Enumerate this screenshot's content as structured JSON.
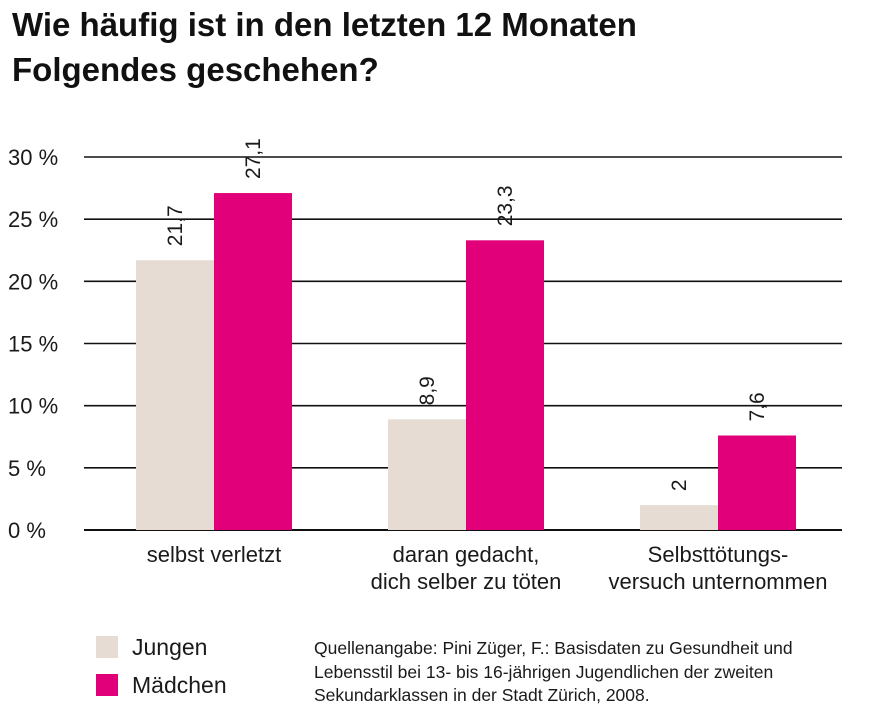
{
  "title_lines": [
    "Wie häufig ist in den letzten 12 Monaten",
    "Folgendes geschehen?"
  ],
  "colors": {
    "jungen": "#e6dcd4",
    "maedchen": "#e2007a",
    "grid": "#111111"
  },
  "chart_data": {
    "type": "bar",
    "title": "Wie häufig ist in den letzten 12 Monaten Folgendes geschehen?",
    "categories": [
      [
        "selbst verletzt"
      ],
      [
        "daran gedacht,",
        "dich selber zu töten"
      ],
      [
        "Selbsttötungs-",
        "versuch unternommen"
      ]
    ],
    "series": [
      {
        "name": "Jungen",
        "values": [
          21.7,
          8.9,
          2
        ],
        "labels": [
          "21,7",
          "8,9",
          "2"
        ]
      },
      {
        "name": "Mädchen",
        "values": [
          27.1,
          23.3,
          7.6
        ],
        "labels": [
          "27,1",
          "23,3",
          "7,6"
        ]
      }
    ],
    "yticks": [
      0,
      5,
      10,
      15,
      20,
      25,
      30
    ],
    "ytick_labels": [
      "0 %",
      "5 %",
      "10 %",
      "15 %",
      "20 %",
      "25 %",
      "30 %"
    ],
    "ylim": [
      0,
      30
    ],
    "grid": true,
    "legend_position": "bottom-left"
  },
  "legend": [
    {
      "label": "Jungen"
    },
    {
      "label": "Mädchen"
    }
  ],
  "source_lines": [
    "Quellenangabe: Pini Züger, F.: Basisdaten zu Gesundheit und",
    "Lebensstil bei 13- bis 16-jährigen Jugendlichen der zweiten",
    "Sekundarklassen in der Stadt Zürich, 2008."
  ]
}
